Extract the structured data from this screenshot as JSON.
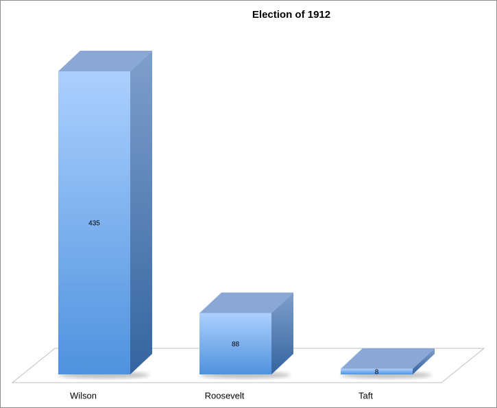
{
  "chart_data": {
    "type": "bar3d",
    "title": "Election of 1912",
    "categories": [
      "Wilson",
      "Roosevelt",
      "Taft"
    ],
    "values": [
      435,
      88,
      8
    ]
  }
}
